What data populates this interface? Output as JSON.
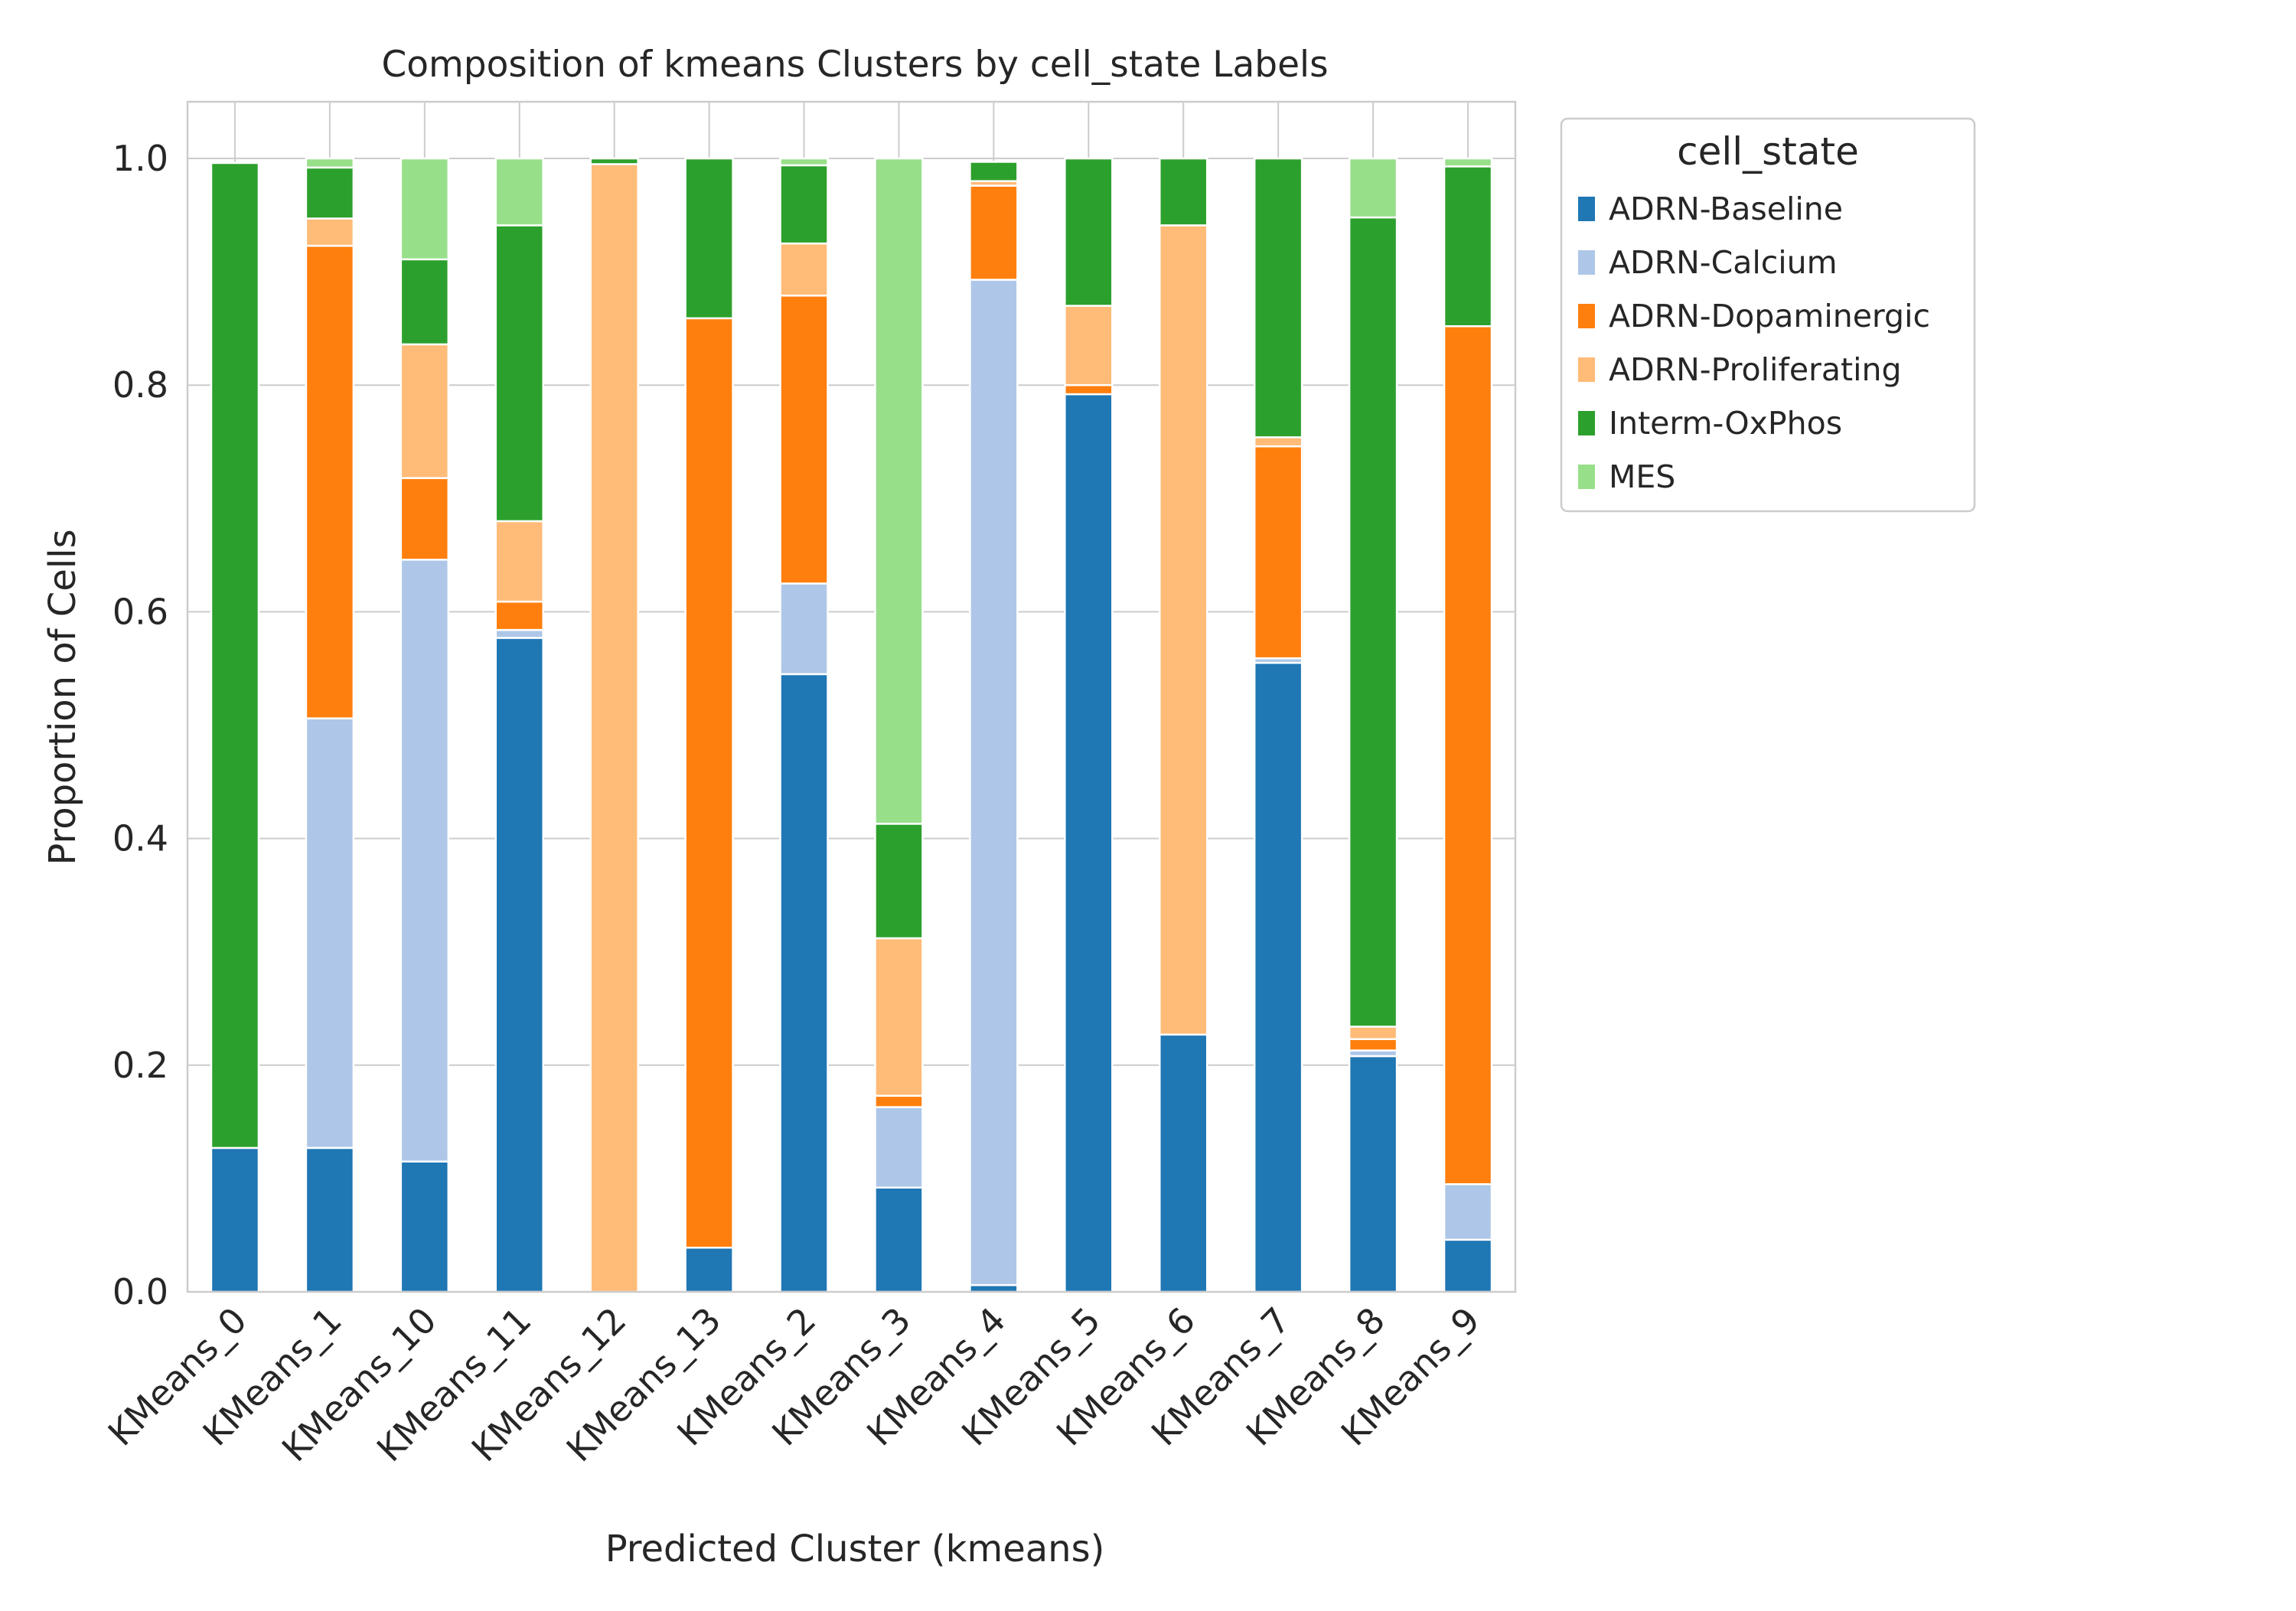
{
  "chart_data": {
    "type": "bar",
    "stacked": true,
    "title": "Composition of kmeans Clusters by cell_state Labels",
    "xlabel": "Predicted Cluster (kmeans)",
    "ylabel": "Proportion of Cells",
    "ylim": [
      0,
      1.05
    ],
    "yticks": [
      "0.0",
      "0.2",
      "0.4",
      "0.6",
      "0.8",
      "1.0"
    ],
    "grid": true,
    "legend_title": "cell_state",
    "legend_position": "outside-upper-right",
    "categories": [
      "KMeans_0",
      "KMeans_1",
      "KMeans_10",
      "KMeans_11",
      "KMeans_12",
      "KMeans_13",
      "KMeans_2",
      "KMeans_3",
      "KMeans_4",
      "KMeans_5",
      "KMeans_6",
      "KMeans_7",
      "KMeans_8",
      "KMeans_9"
    ],
    "series": [
      {
        "name": "ADRN-Baseline",
        "color": "#1f77b4",
        "values": [
          0.127,
          0.127,
          0.115,
          0.577,
          0.0,
          0.039,
          0.545,
          0.092,
          0.006,
          0.792,
          0.227,
          0.555,
          0.208,
          0.046
        ]
      },
      {
        "name": "ADRN-Calcium",
        "color": "#aec7e8",
        "values": [
          0.0,
          0.379,
          0.531,
          0.007,
          0.0,
          0.0,
          0.08,
          0.071,
          0.887,
          0.0,
          0.0,
          0.004,
          0.005,
          0.049
        ]
      },
      {
        "name": "ADRN-Dopaminergic",
        "color": "#ff7f0e",
        "values": [
          0.0,
          0.417,
          0.072,
          0.025,
          0.0,
          0.82,
          0.254,
          0.01,
          0.083,
          0.008,
          0.0,
          0.187,
          0.01,
          0.757
        ]
      },
      {
        "name": "ADRN-Proliferating",
        "color": "#ffbb78",
        "values": [
          0.0,
          0.024,
          0.118,
          0.071,
          0.995,
          0.0,
          0.046,
          0.139,
          0.004,
          0.07,
          0.714,
          0.008,
          0.011,
          0.0
        ]
      },
      {
        "name": "Interm-OxPhos",
        "color": "#2ca02c",
        "values": [
          0.869,
          0.045,
          0.075,
          0.261,
          0.005,
          0.141,
          0.069,
          0.101,
          0.017,
          0.13,
          0.059,
          0.246,
          0.714,
          0.141
        ]
      },
      {
        "name": "MES",
        "color": "#98df8a",
        "values": [
          0.0,
          0.008,
          0.089,
          0.059,
          0.0,
          0.0,
          0.006,
          0.587,
          0.0,
          0.0,
          0.0,
          0.0,
          0.052,
          0.007
        ]
      }
    ]
  }
}
